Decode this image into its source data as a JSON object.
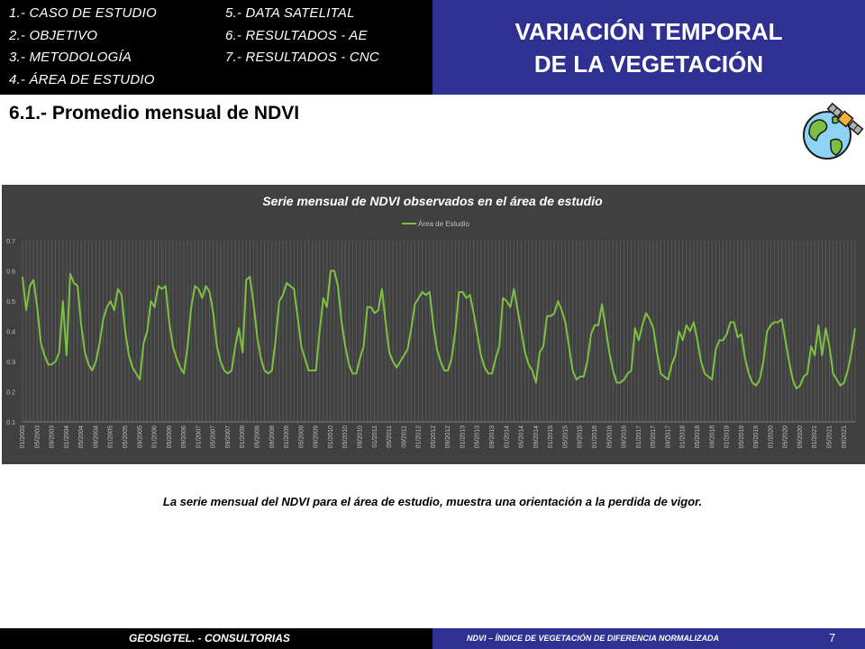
{
  "menu": {
    "items": [
      "1.- CASO DE ESTUDIO",
      "2.- OBJETIVO",
      "3.- METODOLOGÍA",
      "4.- ÁREA DE ESTUDIO",
      "5.- DATA SATELITAL",
      "6.- RESULTADOS - AE",
      "7.- RESULTADOS - CNC"
    ]
  },
  "header": {
    "title_line1": "VARIACIÓN TEMPORAL",
    "title_line2": "DE LA VEGETACIÓN"
  },
  "section": {
    "title": "6.1.- Promedio mensual de NDVI"
  },
  "icons": {
    "globe": "globe-satellite-icon"
  },
  "caption": "La serie mensual del NDVI para el área de estudio, muestra una orientación a la perdida de vigor.",
  "footer": {
    "left": "GEOSIGTEL. - CONSULTORIAS",
    "right": "NDVI – ÍNDICE DE VEGETACIÓN DE DIFERENCIA NORMALIZADA",
    "page": "7"
  },
  "colors": {
    "chart_bg": "#404040",
    "series": "#7dc142",
    "header_blue": "#2e3192",
    "grid": "#595959"
  },
  "chart_data": {
    "type": "line",
    "title": "Serie mensual de NDVI observados en el área de estudio",
    "legend_position": "top",
    "ylim": [
      0.1,
      0.7
    ],
    "yticks": [
      "0.1",
      "0.2",
      "0.3",
      "0.4",
      "0.5",
      "0.6",
      "0.7"
    ],
    "xtick_labels": [
      "01/2003",
      "05/2003",
      "09/2003",
      "01/2004",
      "05/2004",
      "09/2004",
      "01/2005",
      "05/2005",
      "09/2005",
      "01/2006",
      "05/2006",
      "09/2006",
      "01/2007",
      "05/2007",
      "09/2007",
      "01/2008",
      "05/2008",
      "09/2008",
      "01/2009",
      "05/2009",
      "09/2009",
      "01/2010",
      "05/2010",
      "09/2010",
      "01/2011",
      "05/2011",
      "09/2011",
      "01/2012",
      "05/2012",
      "09/2012",
      "01/2013",
      "05/2013",
      "09/2013",
      "01/2014",
      "05/2014",
      "09/2014",
      "01/2015",
      "05/2015",
      "09/2015",
      "01/2016",
      "05/2016",
      "09/2016",
      "01/2017",
      "05/2017",
      "09/2017",
      "01/2018",
      "05/2018",
      "09/2018",
      "01/2019",
      "05/2019",
      "09/2019",
      "01/2020",
      "05/2020",
      "09/2020",
      "01/2021",
      "05/2021",
      "09/2021"
    ],
    "x_start": "01/2003",
    "x_end": "12/2021",
    "grid": true,
    "series": [
      {
        "name": "Área de Estudio",
        "color": "#7dc142",
        "values": [
          0.58,
          0.47,
          0.55,
          0.57,
          0.48,
          0.36,
          0.32,
          0.29,
          0.29,
          0.3,
          0.33,
          0.5,
          0.32,
          0.59,
          0.56,
          0.55,
          0.42,
          0.33,
          0.29,
          0.27,
          0.3,
          0.36,
          0.44,
          0.48,
          0.5,
          0.47,
          0.54,
          0.52,
          0.4,
          0.32,
          0.28,
          0.26,
          0.24,
          0.36,
          0.4,
          0.5,
          0.48,
          0.55,
          0.54,
          0.55,
          0.43,
          0.35,
          0.31,
          0.28,
          0.26,
          0.35,
          0.48,
          0.55,
          0.54,
          0.51,
          0.55,
          0.53,
          0.46,
          0.35,
          0.3,
          0.27,
          0.26,
          0.27,
          0.35,
          0.41,
          0.33,
          0.57,
          0.58,
          0.49,
          0.38,
          0.31,
          0.27,
          0.26,
          0.27,
          0.37,
          0.5,
          0.52,
          0.56,
          0.55,
          0.54,
          0.45,
          0.35,
          0.31,
          0.27,
          0.27,
          0.27,
          0.4,
          0.51,
          0.48,
          0.6,
          0.6,
          0.55,
          0.43,
          0.35,
          0.29,
          0.26,
          0.26,
          0.31,
          0.35,
          0.48,
          0.48,
          0.46,
          0.47,
          0.54,
          0.43,
          0.33,
          0.3,
          0.28,
          0.3,
          0.32,
          0.34,
          0.41,
          0.49,
          0.51,
          0.53,
          0.52,
          0.53,
          0.42,
          0.34,
          0.3,
          0.27,
          0.27,
          0.31,
          0.4,
          0.53,
          0.53,
          0.51,
          0.52,
          0.46,
          0.39,
          0.32,
          0.28,
          0.26,
          0.26,
          0.31,
          0.35,
          0.51,
          0.5,
          0.48,
          0.54,
          0.47,
          0.4,
          0.33,
          0.29,
          0.27,
          0.23,
          0.33,
          0.35,
          0.45,
          0.45,
          0.46,
          0.5,
          0.47,
          0.43,
          0.35,
          0.27,
          0.24,
          0.25,
          0.25,
          0.3,
          0.39,
          0.42,
          0.42,
          0.49,
          0.41,
          0.33,
          0.27,
          0.23,
          0.23,
          0.24,
          0.26,
          0.27,
          0.41,
          0.37,
          0.42,
          0.46,
          0.44,
          0.41,
          0.33,
          0.26,
          0.25,
          0.24,
          0.29,
          0.32,
          0.4,
          0.37,
          0.42,
          0.4,
          0.43,
          0.37,
          0.3,
          0.26,
          0.25,
          0.24,
          0.34,
          0.37,
          0.37,
          0.39,
          0.43,
          0.43,
          0.38,
          0.39,
          0.31,
          0.26,
          0.23,
          0.22,
          0.24,
          0.3,
          0.4,
          0.42,
          0.43,
          0.43,
          0.44,
          0.37,
          0.3,
          0.24,
          0.21,
          0.22,
          0.25,
          0.26,
          0.35,
          0.32,
          0.42,
          0.32,
          0.41,
          0.35,
          0.26,
          0.24,
          0.22,
          0.23,
          0.27,
          0.33,
          0.41
        ]
      }
    ]
  }
}
